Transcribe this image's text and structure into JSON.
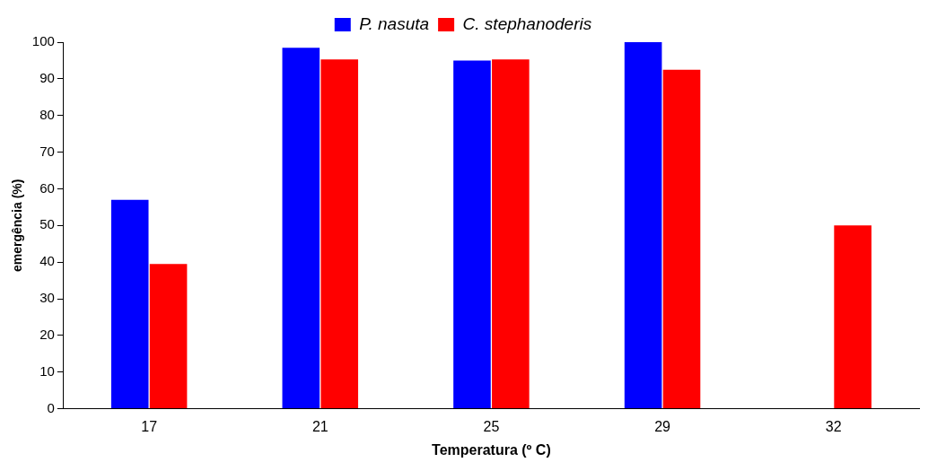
{
  "chart_data": {
    "type": "bar",
    "xlabel": "Temperatura (º C)",
    "ylabel": "emergência (%)",
    "categories": [
      "17",
      "21",
      "25",
      "29",
      "32"
    ],
    "series": [
      {
        "name": "P. nasuta",
        "color": "#0000ff",
        "values": [
          57,
          98.5,
          95,
          100,
          null
        ]
      },
      {
        "name": "C. stephanoderis",
        "color": "#ff0000",
        "values": [
          39.5,
          95.3,
          95.3,
          92.5,
          50
        ]
      }
    ],
    "ylim": [
      0,
      100
    ],
    "yticks": [
      0,
      10,
      20,
      30,
      40,
      50,
      60,
      70,
      80,
      90,
      100
    ],
    "grid": false,
    "legend": "top"
  }
}
